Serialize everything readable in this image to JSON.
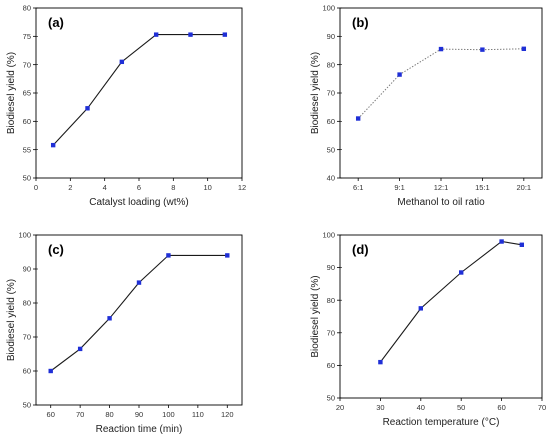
{
  "chart_data": [
    {
      "panel": "(a)",
      "type": "line",
      "xlabel": "Catalyst loading (wt%)",
      "ylabel": "Biodiesel yield (%)",
      "xlim": [
        0,
        12
      ],
      "ylim": [
        50,
        80
      ],
      "xticks": [
        0,
        2,
        4,
        6,
        8,
        10,
        12
      ],
      "yticks": [
        50,
        55,
        60,
        65,
        70,
        75,
        80
      ],
      "x": [
        1,
        3,
        5,
        7,
        9,
        11
      ],
      "y": [
        55.8,
        62.3,
        70.5,
        75.3,
        75.3,
        75.3
      ],
      "line_style": "solid",
      "line_color": "#1a1a1a",
      "marker_color": "#1f2fd6"
    },
    {
      "panel": "(b)",
      "type": "line",
      "xlabel": "Methanol to oil ratio",
      "ylabel": "Biodiesel yield (%)",
      "categories": [
        "6:1",
        "9:1",
        "12:1",
        "15:1",
        "20:1"
      ],
      "ylim": [
        40,
        100
      ],
      "yticks": [
        40,
        50,
        60,
        70,
        80,
        90,
        100
      ],
      "y": [
        61,
        76.5,
        85.5,
        85.3,
        85.6
      ],
      "line_style": "dotted",
      "line_color": "#777777",
      "marker_color": "#1f2fd6"
    },
    {
      "panel": "(c)",
      "type": "line",
      "xlabel": "Reaction time (min)",
      "ylabel": "Biodiesel yield (%)",
      "xlim": [
        55,
        125
      ],
      "ylim": [
        50,
        100
      ],
      "xticks": [
        60,
        70,
        80,
        90,
        100,
        110,
        120
      ],
      "yticks": [
        50,
        60,
        70,
        80,
        90,
        100
      ],
      "x": [
        60,
        70,
        80,
        90,
        100,
        120
      ],
      "y": [
        60,
        66.5,
        75.5,
        86,
        94,
        94
      ],
      "line_style": "solid",
      "line_color": "#1a1a1a",
      "marker_color": "#1f2fd6"
    },
    {
      "panel": "(d)",
      "type": "line",
      "xlabel": "Reaction temperature (°C)",
      "ylabel": "Biodiesel yield (%)",
      "xlim": [
        20,
        70
      ],
      "ylim": [
        50,
        100
      ],
      "xticks": [
        20,
        30,
        40,
        50,
        60,
        70
      ],
      "yticks": [
        50,
        60,
        70,
        80,
        90,
        100
      ],
      "x": [
        30,
        40,
        50,
        60,
        65
      ],
      "y": [
        61,
        77.5,
        88.5,
        98,
        97
      ],
      "line_style": "solid",
      "line_color": "#1a1a1a",
      "marker_color": "#1f2fd6"
    }
  ]
}
